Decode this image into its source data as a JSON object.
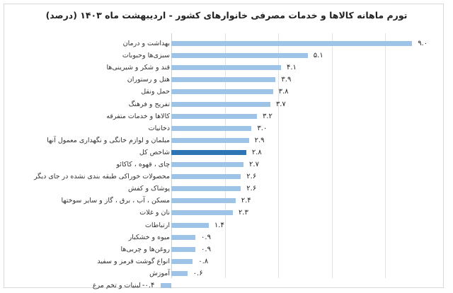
{
  "title": "تورم ماهانه کالاها و خدمات مصرفی خانوارهای کشور - اردیبهشت ماه ۱۴۰۳ (درصد)",
  "colors": {
    "bar": "#9dc3e6",
    "highlight": "#2e75b6",
    "grid": "#e3e3e3"
  },
  "chart_data": {
    "type": "bar",
    "orientation": "horizontal",
    "title": "تورم ماهانه کالاها و خدمات مصرفی خانوارهای کشور - اردیبهشت ماه ۱۴۰۳ (درصد)",
    "xlabel": "",
    "ylabel": "",
    "xlim": [
      -0.4,
      9.0
    ],
    "grid": true,
    "legend": "none",
    "highlighted_category": "شاخص کل",
    "categories": [
      "بهداشت و درمان",
      "سبزی‌ها وحبوبات",
      "قند و شکر و شیرینی‌ها",
      "هتل و رستوران",
      "حمل ونقل",
      "تفریح و فرهنگ",
      "کالاها و خدمات متفرقه",
      "دخانیات",
      "مبلمان و لوازم خانگی و نگهداری معمول آنها",
      "شاخص کل",
      "چای ، قهوه ، کاکائو",
      "محصولات خوراکی طبقه بندی نشده در جای دیگر",
      "پوشاک و کفش",
      "مسکن ، آب ، برق ، گاز و سایر سوختها",
      "نان و غلات",
      "ارتباطات",
      "میوه و خشکبار",
      "روغن‌ها و چربی‌ها",
      "انواع گوشت قرمز و سفید",
      "آموزش",
      "لبنیات و تخم مرغ"
    ],
    "values": [
      9.0,
      5.1,
      4.1,
      3.9,
      3.8,
      3.7,
      3.2,
      3.0,
      2.9,
      2.8,
      2.7,
      2.6,
      2.6,
      2.4,
      2.3,
      1.4,
      0.9,
      0.9,
      0.8,
      0.6,
      -0.4
    ],
    "value_labels": [
      "۹.۰",
      "۵.۱",
      "۴.۱",
      "۳.۹",
      "۳.۸",
      "۳.۷",
      "۳.۲",
      "۳.۰",
      "۲.۹",
      "۲.۸",
      "۲.۷",
      "۲.۶",
      "۲.۶",
      "۲.۴",
      "۲.۳",
      "۱.۴",
      "۰.۹",
      "۰.۹",
      "۰.۸",
      "۰.۶",
      "-۰.۴"
    ]
  }
}
